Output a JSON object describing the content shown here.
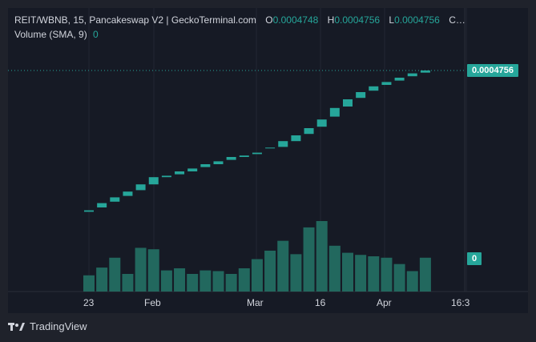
{
  "legend": {
    "pair": "REIT/WBNB, 15, Pancakeswap V2 | GeckoTerminal.com",
    "o_label": "O",
    "o_value": "0.0004748",
    "h_label": "H",
    "h_value": "0.0004756",
    "l_label": "L",
    "l_value": "0.0004756",
    "c_label": "C…",
    "volume_label": "Volume (SMA, 9)",
    "volume_value": "0"
  },
  "price_tag": "0.0004756",
  "volume_tag": "0",
  "x_labels": [
    "23",
    "Feb",
    "Mar",
    "16",
    "Apr",
    "16:3"
  ],
  "branding": "TradingView",
  "colors": {
    "up": "#26a69a",
    "volume": "#22685e",
    "bg": "#161a25",
    "grid": "#232632"
  },
  "chart_data": {
    "type": "candlestick",
    "price_last": 0.0004756,
    "candles": [
      {
        "open": 0.02,
        "close": 0.03
      },
      {
        "open": 0.05,
        "close": 0.08
      },
      {
        "open": 0.09,
        "close": 0.12
      },
      {
        "open": 0.13,
        "close": 0.16
      },
      {
        "open": 0.17,
        "close": 0.21
      },
      {
        "open": 0.21,
        "close": 0.26
      },
      {
        "open": 0.26,
        "close": 0.27
      },
      {
        "open": 0.28,
        "close": 0.3
      },
      {
        "open": 0.3,
        "close": 0.32
      },
      {
        "open": 0.33,
        "close": 0.35
      },
      {
        "open": 0.35,
        "close": 0.37
      },
      {
        "open": 0.38,
        "close": 0.4
      },
      {
        "open": 0.4,
        "close": 0.41
      },
      {
        "open": 0.42,
        "close": 0.43
      },
      {
        "open": 0.46,
        "close": 0.465
      },
      {
        "open": 0.47,
        "close": 0.51
      },
      {
        "open": 0.51,
        "close": 0.55
      },
      {
        "open": 0.56,
        "close": 0.6
      },
      {
        "open": 0.61,
        "close": 0.66
      },
      {
        "open": 0.68,
        "close": 0.74
      },
      {
        "open": 0.75,
        "close": 0.8
      },
      {
        "open": 0.81,
        "close": 0.85
      },
      {
        "open": 0.86,
        "close": 0.89
      },
      {
        "open": 0.9,
        "close": 0.92
      },
      {
        "open": 0.93,
        "close": 0.95
      },
      {
        "open": 0.96,
        "close": 0.98
      },
      {
        "open": 0.985,
        "close": 1.0
      }
    ],
    "volume": [
      0.23,
      0.34,
      0.48,
      0.25,
      0.62,
      0.6,
      0.3,
      0.33,
      0.25,
      0.3,
      0.29,
      0.25,
      0.33,
      0.46,
      0.58,
      0.72,
      0.53,
      0.91,
      1.0,
      0.65,
      0.55,
      0.52,
      0.5,
      0.48,
      0.39,
      0.29,
      0.48
    ]
  }
}
